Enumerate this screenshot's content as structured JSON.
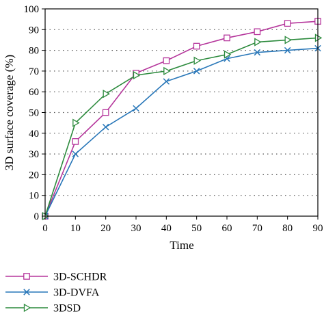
{
  "chart_data": {
    "type": "line",
    "title": "",
    "xlabel": "Time",
    "ylabel": "3D surface coverage (%)",
    "x": [
      0,
      10,
      20,
      30,
      40,
      50,
      60,
      70,
      80,
      90
    ],
    "xlim": [
      0,
      90
    ],
    "ylim": [
      0,
      100
    ],
    "x_ticks": [
      "0",
      "10",
      "20",
      "30",
      "40",
      "50",
      "60",
      "70",
      "80",
      "90"
    ],
    "y_ticks": [
      "0",
      "10",
      "20",
      "30",
      "40",
      "50",
      "60",
      "70",
      "80",
      "90",
      "100"
    ],
    "grid": "horizontal dotted",
    "legend_position": "bottom-left",
    "series": [
      {
        "name": "3D-SCHDR",
        "color": "#b5359b",
        "marker": "square",
        "values": [
          0,
          36,
          50,
          69,
          75,
          82,
          86,
          89,
          93,
          94
        ]
      },
      {
        "name": "3D-DVFA",
        "color": "#2776b8",
        "marker": "x",
        "values": [
          0,
          30,
          43,
          52,
          65,
          70,
          76,
          79,
          80,
          81
        ]
      },
      {
        "name": "3DSD",
        "color": "#2b8a3c",
        "marker": "triangle-right",
        "values": [
          0,
          45,
          59,
          68,
          70,
          75,
          78,
          84,
          85,
          86
        ]
      }
    ]
  }
}
